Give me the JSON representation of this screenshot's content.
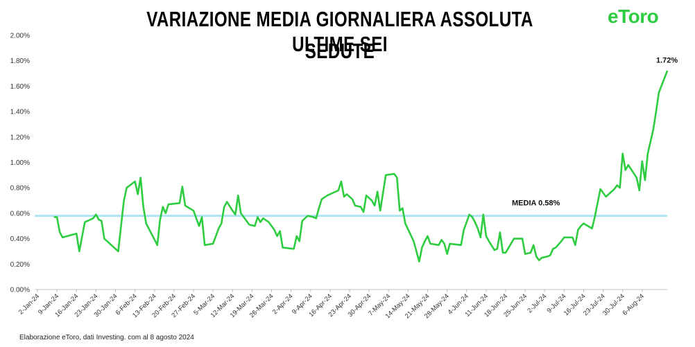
{
  "title": "VARIAZIONE MEDIA GIORNALIERA ASSOLUTA ULTIME SEI",
  "title_line2": "SEDUTE",
  "logo": "eToro",
  "source": "Elaborazione eToro, dati Investing. com al 8 agosto 2024",
  "colors": {
    "line": "#2ecc40",
    "mean_line": "#aee3f2",
    "axis": "#bfbfbf",
    "logo": "#2ecc40"
  },
  "chart_data": {
    "type": "line",
    "ylim": [
      0,
      2.0
    ],
    "y_ticks": [
      "0.00%",
      "0.20%",
      "0.40%",
      "0.60%",
      "0.80%",
      "1.00%",
      "1.20%",
      "1.40%",
      "1.60%",
      "1.80%",
      "2.00%"
    ],
    "x_tick_labels": [
      "2-Jan-24",
      "9-Jan-24",
      "16-Jan-24",
      "23-Jan-24",
      "30-Jan-24",
      "6-Feb-24",
      "13-Feb-24",
      "20-Feb-24",
      "27-Feb-24",
      "5-Mar-24",
      "12-Mar-24",
      "19-Mar-24",
      "26-Mar-24",
      "2-Apr-24",
      "9-Apr-24",
      "16-Apr-24",
      "23-Apr-24",
      "30-Apr-24",
      "7-May-24",
      "14-May-24",
      "21-May-24",
      "28-May-24",
      "4-Jun-24",
      "11-Jun-24",
      "18-Jun-24",
      "25-Jun-24",
      "2-Jul-24",
      "9-Jul-24",
      "16-Jul-24",
      "23-Jul-24",
      "30-Jul-24",
      "6-Aug-24"
    ],
    "mean": {
      "value": 0.58,
      "label": "MEDIA 0.58%"
    },
    "end_label": "1.72%",
    "series": [
      {
        "values": [
          [
            "2024-01-08",
            0.57
          ],
          [
            "2024-01-09",
            0.57
          ],
          [
            "2024-01-10",
            0.45
          ],
          [
            "2024-01-11",
            0.41
          ],
          [
            "2024-01-16",
            0.44
          ],
          [
            "2024-01-17",
            0.3
          ],
          [
            "2024-01-19",
            0.53
          ],
          [
            "2024-01-22",
            0.56
          ],
          [
            "2024-01-23",
            0.59
          ],
          [
            "2024-01-24",
            0.55
          ],
          [
            "2024-01-25",
            0.54
          ],
          [
            "2024-01-26",
            0.4
          ],
          [
            "2024-01-31",
            0.3
          ],
          [
            "2024-02-01",
            0.5
          ],
          [
            "2024-02-02",
            0.7
          ],
          [
            "2024-02-03",
            0.8
          ],
          [
            "2024-02-06",
            0.85
          ],
          [
            "2024-02-07",
            0.75
          ],
          [
            "2024-02-08",
            0.88
          ],
          [
            "2024-02-09",
            0.65
          ],
          [
            "2024-02-10",
            0.52
          ],
          [
            "2024-02-14",
            0.35
          ],
          [
            "2024-02-15",
            0.55
          ],
          [
            "2024-02-16",
            0.65
          ],
          [
            "2024-02-17",
            0.6
          ],
          [
            "2024-02-18",
            0.67
          ],
          [
            "2024-02-22",
            0.68
          ],
          [
            "2024-02-23",
            0.81
          ],
          [
            "2024-02-24",
            0.66
          ],
          [
            "2024-02-27",
            0.62
          ],
          [
            "2024-02-29",
            0.5
          ],
          [
            "2024-03-01",
            0.57
          ],
          [
            "2024-03-02",
            0.35
          ],
          [
            "2024-03-05",
            0.36
          ],
          [
            "2024-03-07",
            0.48
          ],
          [
            "2024-03-08",
            0.52
          ],
          [
            "2024-03-09",
            0.65
          ],
          [
            "2024-03-10",
            0.69
          ],
          [
            "2024-03-12",
            0.62
          ],
          [
            "2024-03-13",
            0.59
          ],
          [
            "2024-03-14",
            0.74
          ],
          [
            "2024-03-15",
            0.6
          ],
          [
            "2024-03-18",
            0.51
          ],
          [
            "2024-03-20",
            0.5
          ],
          [
            "2024-03-21",
            0.57
          ],
          [
            "2024-03-22",
            0.53
          ],
          [
            "2024-03-23",
            0.56
          ],
          [
            "2024-03-25",
            0.53
          ],
          [
            "2024-03-27",
            0.47
          ],
          [
            "2024-03-28",
            0.42
          ],
          [
            "2024-03-29",
            0.46
          ],
          [
            "2024-03-30",
            0.33
          ],
          [
            "2024-04-03",
            0.32
          ],
          [
            "2024-04-04",
            0.42
          ],
          [
            "2024-04-05",
            0.38
          ],
          [
            "2024-04-06",
            0.54
          ],
          [
            "2024-04-08",
            0.58
          ],
          [
            "2024-04-10",
            0.57
          ],
          [
            "2024-04-11",
            0.56
          ],
          [
            "2024-04-12",
            0.64
          ],
          [
            "2024-04-13",
            0.71
          ],
          [
            "2024-04-15",
            0.74
          ],
          [
            "2024-04-17",
            0.76
          ],
          [
            "2024-04-19",
            0.78
          ],
          [
            "2024-04-20",
            0.85
          ],
          [
            "2024-04-21",
            0.73
          ],
          [
            "2024-04-22",
            0.75
          ],
          [
            "2024-04-24",
            0.71
          ],
          [
            "2024-04-25",
            0.66
          ],
          [
            "2024-04-27",
            0.65
          ],
          [
            "2024-04-28",
            0.61
          ],
          [
            "2024-04-29",
            0.74
          ],
          [
            "2024-05-01",
            0.7
          ],
          [
            "2024-05-02",
            0.66
          ],
          [
            "2024-05-03",
            0.77
          ],
          [
            "2024-05-04",
            0.62
          ],
          [
            "2024-05-06",
            0.9
          ],
          [
            "2024-05-09",
            0.91
          ],
          [
            "2024-05-10",
            0.88
          ],
          [
            "2024-05-11",
            0.62
          ],
          [
            "2024-05-12",
            0.64
          ],
          [
            "2024-05-13",
            0.52
          ],
          [
            "2024-05-16",
            0.38
          ],
          [
            "2024-05-18",
            0.22
          ],
          [
            "2024-05-19",
            0.33
          ],
          [
            "2024-05-20",
            0.38
          ],
          [
            "2024-05-21",
            0.42
          ],
          [
            "2024-05-22",
            0.36
          ],
          [
            "2024-05-25",
            0.35
          ],
          [
            "2024-05-26",
            0.39
          ],
          [
            "2024-05-27",
            0.36
          ],
          [
            "2024-05-28",
            0.28
          ],
          [
            "2024-05-29",
            0.36
          ],
          [
            "2024-06-02",
            0.35
          ],
          [
            "2024-06-03",
            0.47
          ],
          [
            "2024-06-04",
            0.53
          ],
          [
            "2024-06-05",
            0.59
          ],
          [
            "2024-06-06",
            0.57
          ],
          [
            "2024-06-07",
            0.53
          ],
          [
            "2024-06-08",
            0.48
          ],
          [
            "2024-06-09",
            0.41
          ],
          [
            "2024-06-10",
            0.59
          ],
          [
            "2024-06-11",
            0.42
          ],
          [
            "2024-06-12",
            0.38
          ],
          [
            "2024-06-14",
            0.31
          ],
          [
            "2024-06-15",
            0.32
          ],
          [
            "2024-06-16",
            0.45
          ],
          [
            "2024-06-17",
            0.29
          ],
          [
            "2024-06-18",
            0.29
          ],
          [
            "2024-06-21",
            0.4
          ],
          [
            "2024-06-24",
            0.4
          ],
          [
            "2024-06-25",
            0.28
          ],
          [
            "2024-06-27",
            0.29
          ],
          [
            "2024-06-28",
            0.35
          ],
          [
            "2024-06-29",
            0.26
          ],
          [
            "2024-06-30",
            0.23
          ],
          [
            "2024-07-01",
            0.25
          ],
          [
            "2024-07-03",
            0.26
          ],
          [
            "2024-07-04",
            0.27
          ],
          [
            "2024-07-05",
            0.32
          ],
          [
            "2024-07-06",
            0.33
          ],
          [
            "2024-07-08",
            0.38
          ],
          [
            "2024-07-09",
            0.41
          ],
          [
            "2024-07-12",
            0.41
          ],
          [
            "2024-07-13",
            0.35
          ],
          [
            "2024-07-14",
            0.47
          ],
          [
            "2024-07-15",
            0.5
          ],
          [
            "2024-07-16",
            0.52
          ],
          [
            "2024-07-19",
            0.48
          ],
          [
            "2024-07-20",
            0.57
          ],
          [
            "2024-07-22",
            0.79
          ],
          [
            "2024-07-24",
            0.73
          ],
          [
            "2024-07-27",
            0.79
          ],
          [
            "2024-07-28",
            0.82
          ],
          [
            "2024-07-29",
            0.8
          ],
          [
            "2024-07-30",
            1.07
          ],
          [
            "2024-07-31",
            0.94
          ],
          [
            "2024-08-01",
            0.98
          ],
          [
            "2024-08-04",
            0.88
          ],
          [
            "2024-08-05",
            0.78
          ],
          [
            "2024-08-06",
            1.01
          ],
          [
            "2024-08-07",
            0.86
          ],
          [
            "2024-08-08",
            1.07
          ],
          [
            "2024-08-10",
            1.26
          ],
          [
            "2024-08-11",
            1.4
          ],
          [
            "2024-08-12",
            1.55
          ],
          [
            "2024-08-15",
            1.72
          ]
        ]
      }
    ]
  }
}
